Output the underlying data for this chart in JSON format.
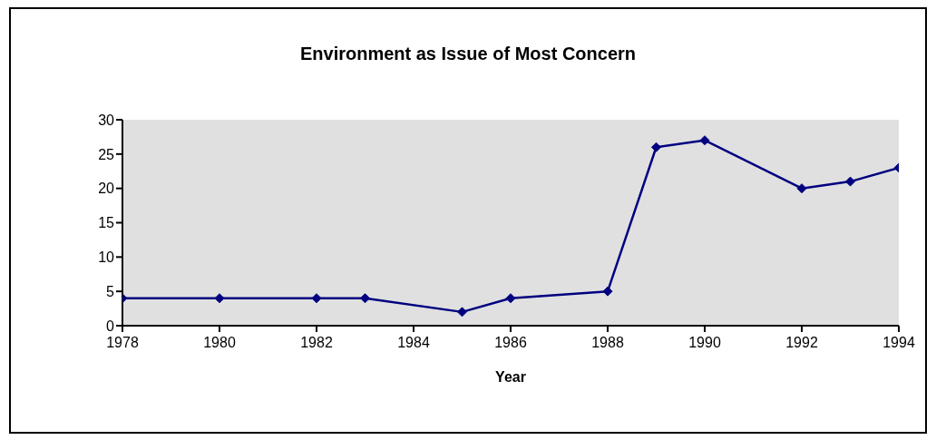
{
  "chart_data": {
    "type": "line",
    "title": "Environment as Issue of Most Concern",
    "xlabel": "Year",
    "x": [
      1978,
      1980,
      1982,
      1983,
      1985,
      1986,
      1988,
      1989,
      1990,
      1992,
      1993,
      1994
    ],
    "series": [
      {
        "color": "#000080",
        "values": [
          4,
          4,
          4,
          4,
          2,
          4,
          5,
          26,
          27,
          20,
          21,
          23
        ]
      }
    ],
    "xlim": [
      1978,
      1994
    ],
    "xticks": [
      1978,
      1980,
      1982,
      1984,
      1986,
      1988,
      1990,
      1992,
      1994
    ],
    "ylim": [
      0,
      30
    ],
    "yticks": [
      0,
      5,
      10,
      15,
      20,
      25,
      30
    ],
    "grid": false,
    "legend": false,
    "marker": "diamond",
    "line_style": "solid"
  }
}
